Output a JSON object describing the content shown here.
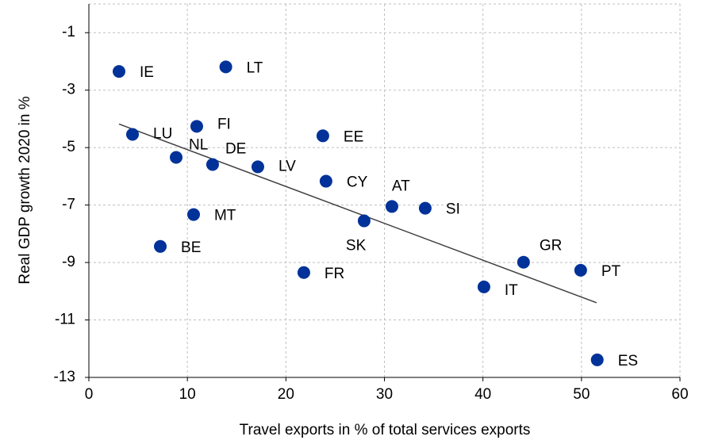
{
  "chart_data": {
    "type": "scatter",
    "x_label": "Travel exports in % of total services exports",
    "y_label": "Real GDP growth 2020 in %",
    "color": "#003299",
    "grid": true,
    "xlim": [
      0,
      60
    ],
    "xticks": [
      0,
      10,
      20,
      30,
      40,
      50,
      60
    ],
    "ylim": [
      -13,
      0
    ],
    "yticks": [
      -13,
      -11,
      -9,
      -7,
      -5,
      -3,
      -1
    ],
    "labels": [
      "IE",
      "LT",
      "FI",
      "LU",
      "NL",
      "DE",
      "LV",
      "EE",
      "CY",
      "AT",
      "SI",
      "SK",
      "MT",
      "BE",
      "FR",
      "IT",
      "GR",
      "PT",
      "ES"
    ],
    "x": [
      3.06,
      13.9,
      10.95,
      4.43,
      8.86,
      12.56,
      17.15,
      23.75,
      24.07,
      30.76,
      34.14,
      27.94,
      10.63,
      7.25,
      21.82,
      40.1,
      44.12,
      49.92,
      51.6
    ],
    "y": [
      -2.35,
      -2.19,
      -4.26,
      -4.54,
      -5.34,
      -5.59,
      -5.67,
      -4.59,
      -6.17,
      -7.05,
      -7.11,
      -7.55,
      -7.33,
      -8.44,
      -9.35,
      -9.85,
      -8.99,
      -9.27,
      -12.39
    ],
    "trendline": {
      "color": "#404040",
      "x": [
        3.06,
        51.53
      ],
      "y": [
        -4.18,
        -10.4
      ]
    }
  }
}
